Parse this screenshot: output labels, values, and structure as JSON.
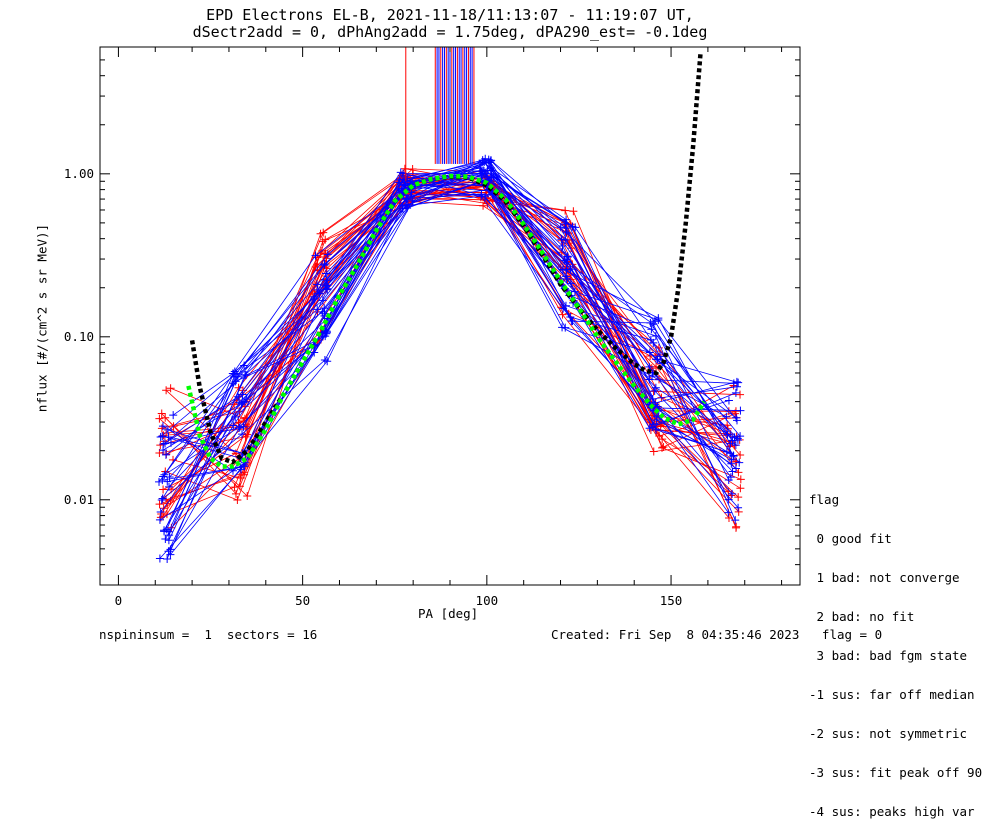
{
  "title_line1": "EPD Electrons EL-B, 2021-11-18/11:13:07 - 11:19:07 UT,",
  "title_line2": "dSectr2add = 0, dPhAng2add = 1.75deg, dPA290_est=  -0.1deg",
  "footer_left": "nspininsum =  1  sectors = 16",
  "footer_right": "Created: Fri Sep  8 04:35:46 2023   flag = 0",
  "legend": {
    "title": "flag",
    "items": [
      " 0 good fit",
      " 1 bad: not converge",
      " 2 bad: no fit",
      " 3 bad: bad fgm state",
      "-1 sus: far off median",
      "-2 sus: not symmetric",
      "-3 sus: fit peak off 90",
      "-4 sus: peaks high var"
    ]
  },
  "colors": {
    "red": "#ff0000",
    "blue": "#0000ff",
    "black": "#000000",
    "green": "#00ff00"
  },
  "chart_data": {
    "type": "line",
    "title": "EPD Electrons EL-B, 2021-11-18/11:13:07 - 11:19:07 UT, dSectr2add = 0, dPhAng2add = 1.75deg, dPA290_est=  -0.1deg",
    "xlabel": "PA [deg]",
    "ylabel": "nflux [#/(cm^2 s sr MeV)]",
    "xlim": [
      -5,
      185
    ],
    "ylim": [
      0.003,
      6.0
    ],
    "yscale": "log",
    "xticks": [
      0,
      50,
      100,
      150
    ],
    "xtick_labels": [
      "0",
      "50",
      "100",
      "150"
    ],
    "yticks": [
      0.01,
      0.1,
      1.0
    ],
    "ytick_labels": [
      "0.01",
      "0.10",
      "1.00"
    ],
    "grid": false,
    "legend_position": "bottom-right outside",
    "series": [
      {
        "color": "red",
        "marker": "+",
        "x": [
          13,
          33,
          55,
          78,
          100,
          122,
          146,
          167
        ],
        "y": [
          0.018,
          0.022,
          0.2,
          0.85,
          0.8,
          0.3,
          0.04,
          0.018
        ]
      },
      {
        "color": "blue",
        "marker": "+",
        "x": [
          13,
          33,
          55,
          78,
          100,
          122,
          146,
          167
        ],
        "y": [
          0.012,
          0.03,
          0.15,
          0.8,
          0.95,
          0.25,
          0.06,
          0.02
        ]
      },
      {
        "color": "black",
        "style": "dashed",
        "x": [
          20,
          22,
          25,
          28,
          31,
          35,
          40,
          45,
          50,
          55,
          60,
          65,
          70,
          75,
          80,
          85,
          90,
          95,
          100,
          105,
          110,
          115,
          120,
          125,
          130,
          135,
          140,
          143,
          146,
          148,
          150,
          152,
          154,
          156,
          158
        ],
        "y": [
          0.095,
          0.05,
          0.026,
          0.018,
          0.017,
          0.02,
          0.03,
          0.045,
          0.07,
          0.11,
          0.18,
          0.28,
          0.45,
          0.68,
          0.85,
          0.93,
          0.96,
          0.95,
          0.85,
          0.68,
          0.48,
          0.32,
          0.21,
          0.15,
          0.11,
          0.085,
          0.068,
          0.062,
          0.06,
          0.07,
          0.1,
          0.2,
          0.5,
          1.5,
          5.5
        ]
      },
      {
        "color": "green",
        "style": "dashed",
        "x": [
          19,
          22,
          25,
          28,
          31,
          35,
          40,
          45,
          50,
          55,
          60,
          65,
          70,
          75,
          80,
          85,
          90,
          95,
          100,
          105,
          110,
          115,
          120,
          125,
          130,
          135,
          140,
          145,
          148,
          152,
          156,
          159
        ],
        "y": [
          0.05,
          0.025,
          0.018,
          0.016,
          0.016,
          0.018,
          0.027,
          0.045,
          0.07,
          0.11,
          0.18,
          0.28,
          0.45,
          0.68,
          0.85,
          0.93,
          0.97,
          0.96,
          0.88,
          0.7,
          0.49,
          0.33,
          0.22,
          0.15,
          0.1,
          0.07,
          0.05,
          0.037,
          0.032,
          0.029,
          0.031,
          0.04
        ]
      }
    ]
  }
}
